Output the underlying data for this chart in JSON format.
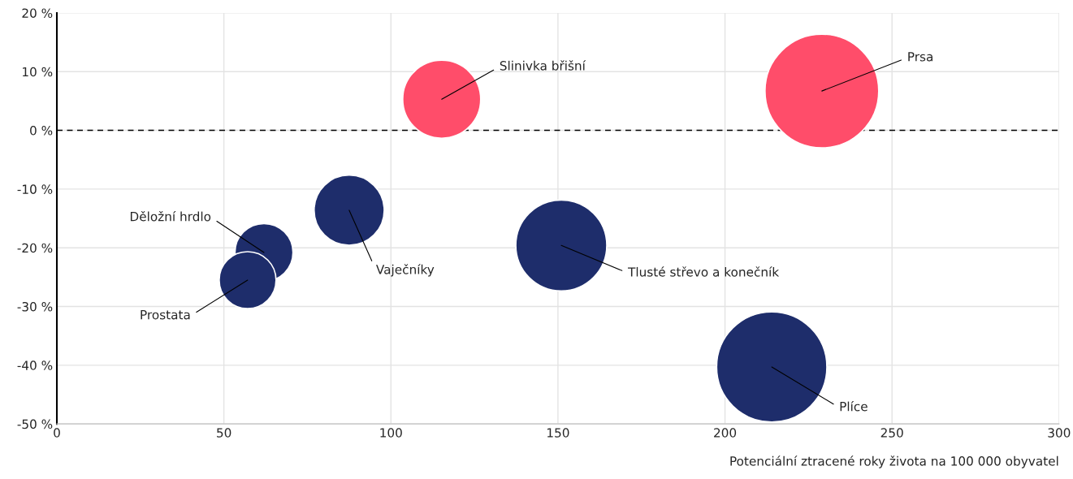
{
  "chart_data": {
    "type": "bubble",
    "xlabel": "Potenciální ztracené roky života na 100 000 obyvatel",
    "x": [
      115.2,
      229,
      87.5,
      62,
      57.1,
      151,
      214
    ],
    "values": [
      5.3,
      6.7,
      -13.6,
      -20.8,
      -25.5,
      -19.6,
      -40.3
    ],
    "sizes": [
      0.47,
      1,
      0.38,
      0.26,
      0.25,
      0.64,
      0.94
    ],
    "colors": [
      "#ff4d6a",
      "#ff4d6a",
      "#1e2d6b",
      "#1e2d6b",
      "#1e2d6b",
      "#1e2d6b",
      "#1e2d6b"
    ],
    "annotations": [
      {
        "text": "Slinivka břišní",
        "x": 115.2,
        "y": 5.3
      },
      {
        "text": "Prsa",
        "x": 229,
        "y": 6.7
      },
      {
        "text": "Vaječníky",
        "x": 87.5,
        "y": -13.6
      },
      {
        "text": "Děložní hrdlo",
        "x": 62,
        "y": -20.8
      },
      {
        "text": "Prostata",
        "x": 57.1,
        "y": -25.5
      },
      {
        "text": "Tlusté střevo a konečník",
        "x": 151,
        "y": -19.6
      },
      {
        "text": "Plíce",
        "x": 214,
        "y": -40.3
      }
    ],
    "xlim": [
      0,
      300
    ],
    "xticks": [
      0,
      50,
      100,
      150,
      200,
      250,
      300
    ],
    "ylim": [
      -50,
      20
    ],
    "yticks": [
      {
        "value": -50,
        "label": "-50 %"
      },
      {
        "value": -40,
        "label": "-40 %"
      },
      {
        "value": -30,
        "label": "-30 %"
      },
      {
        "value": -20,
        "label": "-20 %"
      },
      {
        "value": -10,
        "label": "-10 %"
      },
      {
        "value": 0,
        "label": "0 %"
      },
      {
        "value": 10,
        "label": "10 %"
      },
      {
        "value": 20,
        "label": "20 %"
      }
    ],
    "ref_lines": [
      {
        "axis": "y",
        "value": 0,
        "color": "#000000",
        "line_style": "dashed"
      }
    ],
    "grid": true
  }
}
